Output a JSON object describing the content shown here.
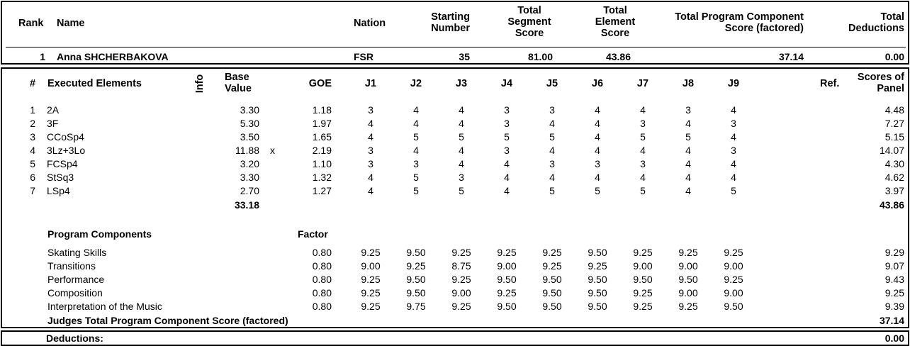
{
  "summary_headers": {
    "rank": "Rank",
    "name": "Name",
    "nation": "Nation",
    "starting_number": [
      "Starting",
      "Number"
    ],
    "total_segment_score": [
      "Total",
      "Segment",
      "Score"
    ],
    "total_element_score": [
      "Total",
      "Element",
      "Score"
    ],
    "total_pcs": [
      "Total Program Component",
      "Score (factored)"
    ],
    "total_deductions": [
      "Total",
      "Deductions"
    ]
  },
  "skater": {
    "rank": "1",
    "name": "Anna SHCHERBAKOVA",
    "nation": "FSR",
    "starting_number": "35",
    "total_segment_score": "81.00",
    "total_element_score": "43.86",
    "total_pcs": "37.14",
    "total_deductions": "0.00"
  },
  "element_headers": {
    "num": "#",
    "executed_elements": "Executed Elements",
    "info": "Info",
    "base_value": [
      "Base",
      "Value"
    ],
    "goe": "GOE",
    "judges": [
      "J1",
      "J2",
      "J3",
      "J4",
      "J5",
      "J6",
      "J7",
      "J8",
      "J9"
    ],
    "ref": "Ref.",
    "scores_of_panel": [
      "Scores of",
      "Panel"
    ]
  },
  "elements": [
    {
      "num": "1",
      "name": "2A",
      "info": "",
      "base": "3.30",
      "goe": "1.18",
      "j": [
        "3",
        "4",
        "4",
        "3",
        "3",
        "4",
        "4",
        "3",
        "4"
      ],
      "score": "4.48"
    },
    {
      "num": "2",
      "name": "3F",
      "info": "",
      "base": "5.30",
      "goe": "1.97",
      "j": [
        "4",
        "4",
        "4",
        "3",
        "4",
        "4",
        "3",
        "4",
        "3"
      ],
      "score": "7.27"
    },
    {
      "num": "3",
      "name": "CCoSp4",
      "info": "",
      "base": "3.50",
      "goe": "1.65",
      "j": [
        "4",
        "5",
        "5",
        "5",
        "5",
        "4",
        "5",
        "5",
        "4"
      ],
      "score": "5.15"
    },
    {
      "num": "4",
      "name": "3Lz+3Lo",
      "info": "x",
      "base": "11.88",
      "goe": "2.19",
      "j": [
        "3",
        "4",
        "4",
        "3",
        "4",
        "4",
        "4",
        "4",
        "3"
      ],
      "score": "14.07"
    },
    {
      "num": "5",
      "name": "FCSp4",
      "info": "",
      "base": "3.20",
      "goe": "1.10",
      "j": [
        "3",
        "3",
        "4",
        "4",
        "3",
        "3",
        "3",
        "4",
        "4"
      ],
      "score": "4.30"
    },
    {
      "num": "6",
      "name": "StSq3",
      "info": "",
      "base": "3.30",
      "goe": "1.32",
      "j": [
        "4",
        "5",
        "3",
        "4",
        "4",
        "4",
        "4",
        "4",
        "4"
      ],
      "score": "4.62"
    },
    {
      "num": "7",
      "name": "LSp4",
      "info": "",
      "base": "2.70",
      "goe": "1.27",
      "j": [
        "4",
        "5",
        "5",
        "4",
        "5",
        "5",
        "5",
        "4",
        "5"
      ],
      "score": "3.97"
    }
  ],
  "base_total": "33.18",
  "elements_total": "43.86",
  "pcs_header": "Program Components",
  "factor_header": "Factor",
  "components": [
    {
      "name": "Skating Skills",
      "factor": "0.80",
      "j": [
        "9.25",
        "9.50",
        "9.25",
        "9.25",
        "9.25",
        "9.50",
        "9.25",
        "9.25",
        "9.25"
      ],
      "score": "9.29"
    },
    {
      "name": "Transitions",
      "factor": "0.80",
      "j": [
        "9.00",
        "9.25",
        "8.75",
        "9.00",
        "9.25",
        "9.25",
        "9.00",
        "9.00",
        "9.00"
      ],
      "score": "9.07"
    },
    {
      "name": "Performance",
      "factor": "0.80",
      "j": [
        "9.25",
        "9.50",
        "9.25",
        "9.50",
        "9.50",
        "9.50",
        "9.50",
        "9.50",
        "9.25"
      ],
      "score": "9.43"
    },
    {
      "name": "Composition",
      "factor": "0.80",
      "j": [
        "9.25",
        "9.50",
        "9.00",
        "9.25",
        "9.50",
        "9.50",
        "9.25",
        "9.00",
        "9.00"
      ],
      "score": "9.25"
    },
    {
      "name": "Interpretation of the Music",
      "factor": "0.80",
      "j": [
        "9.25",
        "9.75",
        "9.25",
        "9.50",
        "9.50",
        "9.50",
        "9.25",
        "9.25",
        "9.50"
      ],
      "score": "9.39"
    }
  ],
  "pcs_total_label": "Judges Total Program Component Score (factored)",
  "pcs_total": "37.14",
  "deductions_label": "Deductions:",
  "deductions_value": "0.00"
}
